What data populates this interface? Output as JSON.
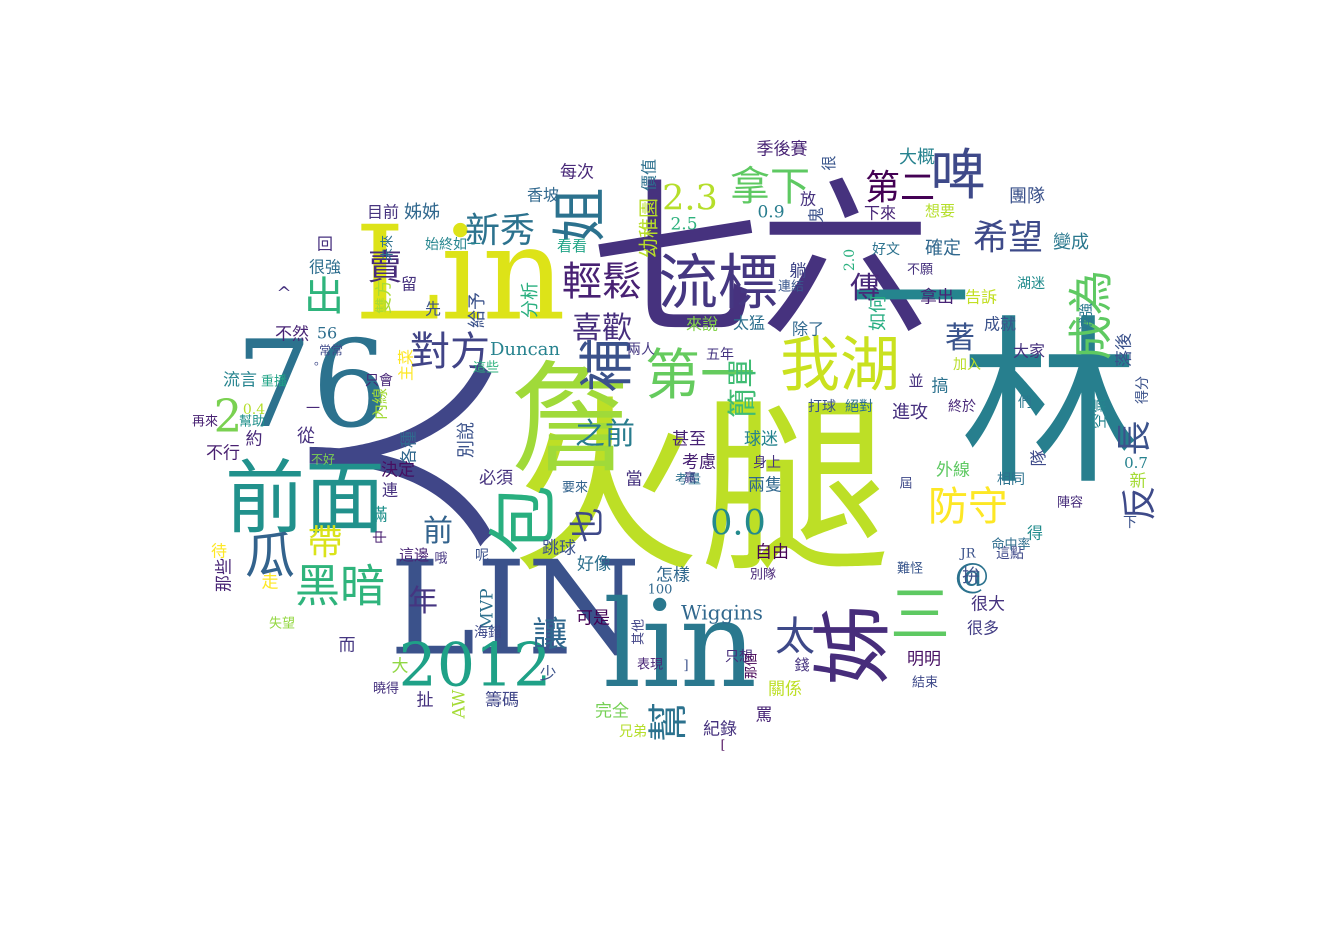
{
  "words": [
    {
      "text": "火腿",
      "color": "#bddf26"
    },
    {
      "text": "人",
      "color": "#404688"
    },
    {
      "text": "七六",
      "color": "#46327e"
    },
    {
      "text": "林",
      "color": "#277f8e"
    },
    {
      "text": "Lin",
      "color": "#dde318"
    },
    {
      "text": "LIN",
      "color": "#3b528b"
    },
    {
      "text": "76",
      "color": "#2c728e"
    },
    {
      "text": "lin",
      "color": "#2a788e"
    },
    {
      "text": "詹",
      "color": "#a0da39"
    },
    {
      "text": "一",
      "color": "#25858e"
    },
    {
      "text": "前面",
      "color": "#21918c"
    },
    {
      "text": "2012",
      "color": "#1fa187"
    },
    {
      "text": "姊",
      "color": "#472d7b"
    },
    {
      "text": "我湖",
      "color": "#cae11f"
    },
    {
      "text": "流標",
      "color": "#453781"
    },
    {
      "text": "姐",
      "color": "#2c728e"
    },
    {
      "text": "包",
      "color": "#29af7f"
    },
    {
      "text": "啤",
      "color": "#3e4989"
    },
    {
      "text": "補",
      "color": "#3b528b"
    },
    {
      "text": "第一",
      "color": "#65cb5e"
    },
    {
      "text": "瓜",
      "color": "#33638d"
    },
    {
      "text": "黑暗",
      "color": "#2fb47c"
    },
    {
      "text": "防守",
      "color": "#fde725"
    },
    {
      "text": "三",
      "color": "#5ec962"
    },
    {
      "text": "成為",
      "color": "#5ec962"
    },
    {
      "text": "拿下",
      "color": "#5ec962"
    },
    {
      "text": "太",
      "color": "#3e4989"
    },
    {
      "text": "2",
      "color": "#7ad151"
    },
    {
      "text": "輕鬆",
      "color": "#482173"
    },
    {
      "text": "對方",
      "color": "#414487"
    },
    {
      "text": "0.0",
      "color": "#238a8d"
    },
    {
      "text": "希望",
      "color": "#3e4a89"
    },
    {
      "text": "也",
      "color": "#3e4989"
    },
    {
      "text": "第二",
      "color": "#440154"
    },
    {
      "text": "2.3",
      "color": "#b5de2b"
    },
    {
      "text": "新秀",
      "color": "#2c728e"
    },
    {
      "text": "出",
      "color": "#2fb47c"
    },
    {
      "text": "賣",
      "color": "#472c7a"
    },
    {
      "text": "簡單",
      "color": "#3fbc73"
    },
    {
      "text": "喜歡",
      "color": "#472f7d"
    },
    {
      "text": "傳",
      "color": "#482878"
    },
    {
      "text": "長",
      "color": "#3b528b"
    },
    {
      "text": "讓",
      "color": "#31688e"
    },
    {
      "text": "幫",
      "color": "#2c728e"
    },
    {
      "text": "帶",
      "color": "#dae319"
    },
    {
      "text": "@",
      "color": "#2c728e"
    },
    {
      "text": "年",
      "color": "#453581"
    },
    {
      "text": "前",
      "color": "#33638d"
    },
    {
      "text": "之前",
      "color": "#287c8e"
    },
    {
      "text": "反",
      "color": "#3e4a89"
    },
    {
      "text": "著",
      "color": "#3a548c"
    },
    {
      "text": "Duncan",
      "color": "#26828e"
    },
    {
      "text": "Wiggins",
      "color": "#31688e"
    },
    {
      "text": "季後賽",
      "color": "#482475"
    },
    {
      "text": "每次",
      "color": "#482878"
    },
    {
      "text": "價值",
      "color": "#2d708e"
    },
    {
      "text": "很",
      "color": "#39558c"
    },
    {
      "text": "放",
      "color": "#46327e"
    },
    {
      "text": "大概",
      "color": "#26828e"
    },
    {
      "text": "香坡",
      "color": "#31688e"
    },
    {
      "text": "幼稚園",
      "color": "#b8de29"
    },
    {
      "text": "鬼",
      "color": "#3b528b"
    },
    {
      "text": "下來",
      "color": "#482677"
    },
    {
      "text": "想要",
      "color": "#b5de2b"
    },
    {
      "text": "團隊",
      "color": "#3b528b"
    },
    {
      "text": "目前",
      "color": "#46337f"
    },
    {
      "text": "姊姊",
      "color": "#31688e"
    },
    {
      "text": "0.9",
      "color": "#287d8e"
    },
    {
      "text": "2.5",
      "color": "#2db27d"
    },
    {
      "text": "始終如一",
      "color": "#25858e"
    },
    {
      "text": "未來",
      "color": "#2d708e"
    },
    {
      "text": "看看",
      "color": "#20a486"
    },
    {
      "text": "躺",
      "color": "#404688"
    },
    {
      "text": "好文",
      "color": "#2c728e"
    },
    {
      "text": "確定",
      "color": "#31688e"
    },
    {
      "text": "變成",
      "color": "#2a788e"
    },
    {
      "text": "回",
      "color": "#46307e"
    },
    {
      "text": "很強",
      "color": "#2e6e8e"
    },
    {
      "text": "留",
      "color": "#46327e"
    },
    {
      "text": "雙方",
      "color": "#a8db34"
    },
    {
      "text": "先",
      "color": "#3b528b"
    },
    {
      "text": "給予",
      "color": "#3b528b"
    },
    {
      "text": "分析",
      "color": "#29af7f"
    },
    {
      "text": "連結",
      "color": "#39568c"
    },
    {
      "text": "2.0",
      "color": "#2ab07f"
    },
    {
      "text": "不願",
      "color": "#46327e"
    },
    {
      "text": "湖迷",
      "color": "#228c8d"
    },
    {
      "text": "拿出",
      "color": "#482475"
    },
    {
      "text": "告訴",
      "color": "#c2df23"
    },
    {
      "text": "來說",
      "color": "#84d44b"
    },
    {
      "text": "太猛",
      "color": "#2d708e"
    },
    {
      "text": "如何",
      "color": "#26ad81"
    },
    {
      "text": "除了",
      "color": "#31688e"
    },
    {
      "text": "成就",
      "color": "#3b528b"
    },
    {
      "text": "補強",
      "color": "#2a788e"
    },
    {
      "text": "不然",
      "color": "#482475"
    },
    {
      "text": "56",
      "color": "#2e6e8e"
    },
    {
      "text": "常常",
      "color": "#3e4989"
    },
    {
      "text": "大家",
      "color": "#46327e"
    },
    {
      "text": "落後",
      "color": "#3b528b"
    },
    {
      "text": "加入",
      "color": "#b8de29"
    },
    {
      "text": "五年",
      "color": "#453581"
    },
    {
      "text": "流言",
      "color": "#25838e"
    },
    {
      "text": "重播",
      "color": "#20a386"
    },
    {
      "text": "只會",
      "color": "#482677"
    },
    {
      "text": "這些",
      "color": "#2db27d"
    },
    {
      "text": "主菜",
      "color": "#fde725"
    },
    {
      "text": "兩人",
      "color": "#453882"
    },
    {
      "text": "並",
      "color": "#46327e"
    },
    {
      "text": "搞",
      "color": "#2c728e"
    },
    {
      "text": "拚",
      "color": "#3b528b"
    },
    {
      "text": "空氣",
      "color": "#25858e"
    },
    {
      "text": "得分",
      "color": "#3b528b"
    },
    {
      "text": "0.4",
      "color": "#b5de2b"
    },
    {
      "text": "幫助",
      "color": "#21918c"
    },
    {
      "text": "再來",
      "color": "#482173"
    },
    {
      "text": "約",
      "color": "#482878"
    },
    {
      "text": "內線",
      "color": "#a2da37"
    },
    {
      "text": "從",
      "color": "#46307e"
    },
    {
      "text": "各種",
      "color": "#31688e"
    },
    {
      "text": "別說",
      "color": "#3b528b"
    },
    {
      "text": "打球",
      "color": "#3b528b"
    },
    {
      "text": "絕對",
      "color": "#2d708e"
    },
    {
      "text": "進攻",
      "color": "#46307e"
    },
    {
      "text": "終於",
      "color": "#482878"
    },
    {
      "text": "甚至",
      "color": "#482475"
    },
    {
      "text": "球迷",
      "color": "#25838e"
    },
    {
      "text": "不行",
      "color": "#481f70"
    },
    {
      "text": "不好",
      "color": "#7ad151"
    },
    {
      "text": "決定",
      "color": "#470e61"
    },
    {
      "text": "必須",
      "color": "#46327e"
    },
    {
      "text": "考慮",
      "color": "#482173"
    },
    {
      "text": "身上",
      "color": "#46327e"
    },
    {
      "text": "外線",
      "color": "#5ec962"
    },
    {
      "text": "隊",
      "color": "#3e4a89"
    },
    {
      "text": "相同",
      "color": "#2c728e"
    },
    {
      "text": "0.7",
      "color": "#26828e"
    },
    {
      "text": "新",
      "color": "#a5db36"
    },
    {
      "text": "連",
      "color": "#46307e"
    },
    {
      "text": "滿",
      "color": "#21918c"
    },
    {
      "text": "當",
      "color": "#46327e"
    },
    {
      "text": "兩隻",
      "color": "#31688e"
    },
    {
      "text": "考量",
      "color": "#2d708e"
    },
    {
      "text": "屆",
      "color": "#3e4989"
    },
    {
      "text": "陣容",
      "color": "#472d7b"
    },
    {
      "text": "得",
      "color": "#228c8d"
    },
    {
      "text": "中",
      "color": "#481f70"
    },
    {
      "text": "這邊",
      "color": "#482475"
    },
    {
      "text": "呢",
      "color": "#3b528b"
    },
    {
      "text": "跳球",
      "color": "#3b528b"
    },
    {
      "text": "自由",
      "color": "#440154"
    },
    {
      "text": "這點",
      "color": "#3e4989"
    },
    {
      "text": "命中率",
      "color": "#2e6e8e"
    },
    {
      "text": "JR",
      "color": "#3b528b"
    },
    {
      "text": "待",
      "color": "#fde725"
    },
    {
      "text": "哦",
      "color": "#453581"
    },
    {
      "text": "好像",
      "color": "#2d708e"
    },
    {
      "text": "怎樣",
      "color": "#31688e"
    },
    {
      "text": "那些",
      "color": "#482475"
    },
    {
      "text": "走",
      "color": "#fde725"
    },
    {
      "text": "MVP",
      "color": "#2d708e"
    },
    {
      "text": "100",
      "color": "#31688e"
    },
    {
      "text": "別隊",
      "color": "#482677"
    },
    {
      "text": "難怪",
      "color": "#39568c"
    },
    {
      "text": "很大",
      "color": "#46337f"
    },
    {
      "text": "失望",
      "color": "#93d741"
    },
    {
      "text": "可是",
      "color": "#440154"
    },
    {
      "text": "很多",
      "color": "#433e85"
    },
    {
      "text": "而",
      "color": "#453781"
    },
    {
      "text": "海錯",
      "color": "#3e4989"
    },
    {
      "text": "其他",
      "color": "#414487"
    },
    {
      "text": "明明",
      "color": "#471063"
    },
    {
      "text": "大",
      "color": "#90d743"
    },
    {
      "text": "少",
      "color": "#3b528b"
    },
    {
      "text": "表現",
      "color": "#482475"
    },
    {
      "text": "]",
      "color": "#3b528b"
    },
    {
      "text": "只想",
      "color": "#472d7b"
    },
    {
      "text": "那個",
      "color": "#440154"
    },
    {
      "text": "關係",
      "color": "#bddf26"
    },
    {
      "text": "錢",
      "color": "#46337f"
    },
    {
      "text": "結束",
      "color": "#3e4989"
    },
    {
      "text": "曉得",
      "color": "#46327e"
    },
    {
      "text": "扯",
      "color": "#46327e"
    },
    {
      "text": "AW",
      "color": "#a5db36"
    },
    {
      "text": "籌碼",
      "color": "#404688"
    },
    {
      "text": "完全",
      "color": "#75d054"
    },
    {
      "text": "兄弟",
      "color": "#b5de2b"
    },
    {
      "text": "紀錄",
      "color": "#46327e"
    },
    {
      "text": "罵",
      "color": "#482475"
    },
    {
      "text": "[",
      "color": "#440154"
    },
    {
      "text": "^",
      "color": "#46327e"
    },
    {
      "text": "。",
      "color": "#3e4989"
    },
    {
      "text": "下",
      "color": "#3b528b"
    },
    {
      "text": "們",
      "color": "#2a788e"
    },
    {
      "text": "要來",
      "color": "#33638d"
    },
    {
      "text": "贏",
      "color": "#433e85"
    },
    {
      "text": "一",
      "color": "#482878"
    }
  ]
}
